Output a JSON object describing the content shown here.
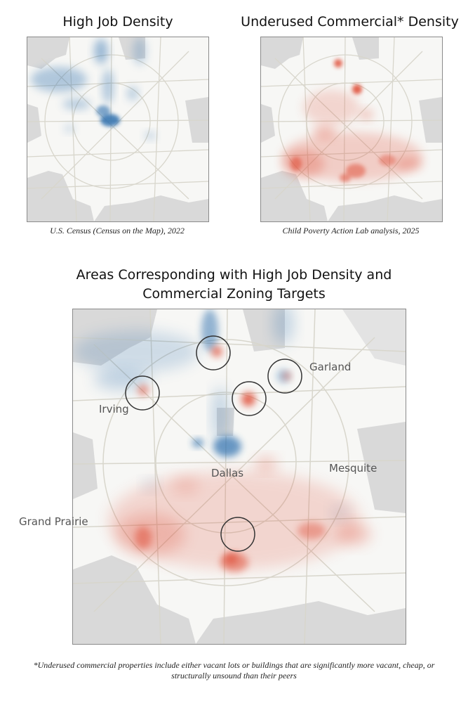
{
  "top_left": {
    "title": "High Job Density",
    "caption": "U.S. Census (Census on the Map), 2022",
    "heat_color": "#2f6fae"
  },
  "top_right": {
    "title": "Underused Commercial* Density",
    "caption": "Child Poverty Action Lab analysis, 2025",
    "heat_color": "#e0523c"
  },
  "combined": {
    "title_line1": "Areas Corresponding with High Job Density and",
    "title_line2": "Commercial Zoning Targets",
    "labels": {
      "irving": "Irving",
      "garland": "Garland",
      "dallas": "Dallas",
      "mesquite": "Mesquite",
      "grand_prairie": "Grand Prairie"
    },
    "target_circle_count": 5
  },
  "footnote": "*Underused commercial properties include either vacant lots or buildings that are significantly more vacant, cheap, or structurally unsound than their peers",
  "colors": {
    "outside_area": "#d9d9d9",
    "city_area": "#f7f7f5",
    "roads": "#d8d6cc",
    "job_heat": "#2f6fae",
    "commercial_heat": "#e0523c"
  }
}
